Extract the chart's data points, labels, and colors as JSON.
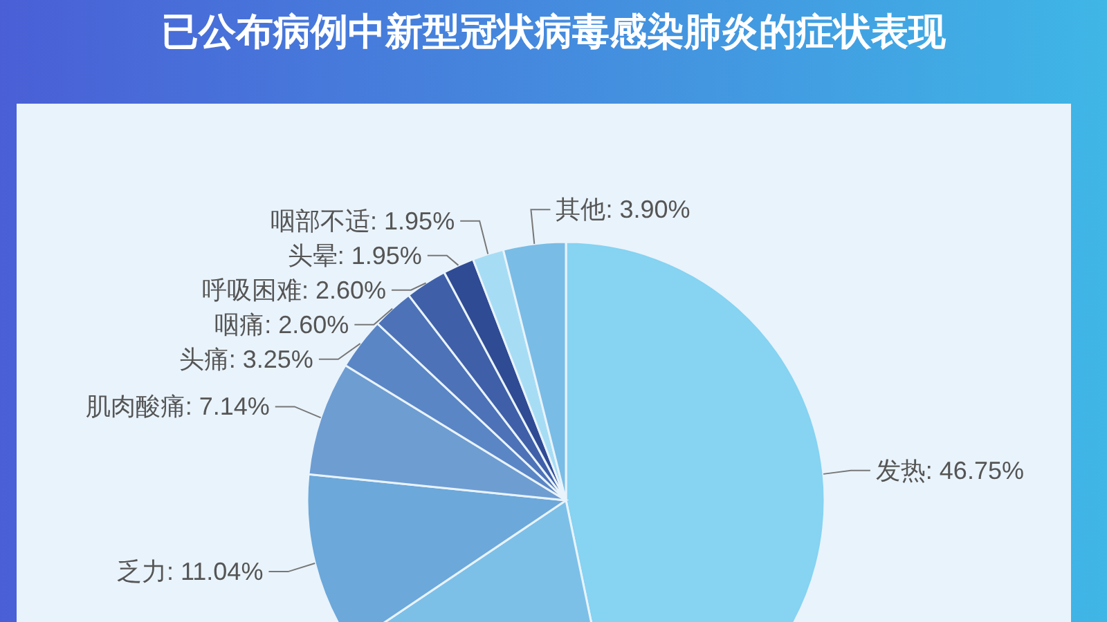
{
  "chart_data": {
    "type": "pie",
    "title": "已公布病例中新型冠状病毒感染肺炎的症状表现",
    "categories": [
      "发热",
      null,
      "乏力",
      "肌肉酸痛",
      "头痛",
      "咽痛",
      "呼吸困难",
      "头晕",
      "咽部不适",
      "其他"
    ],
    "values": [
      46.75,
      18.82,
      11.04,
      7.14,
      3.25,
      2.6,
      2.6,
      1.95,
      1.95,
      3.9
    ],
    "value_labels": [
      "46.75%",
      null,
      "11.04%",
      "7.14%",
      "3.25%",
      "2.60%",
      "2.60%",
      "1.95%",
      "1.95%",
      "3.90%"
    ],
    "colors": [
      "#86d3f2",
      "#7cc0e8",
      "#6ca8da",
      "#6e9dd2",
      "#5a86c6",
      "#4d72b8",
      "#3f60a9",
      "#2f4b94",
      "#a6ddf5",
      "#79bce6"
    ]
  }
}
